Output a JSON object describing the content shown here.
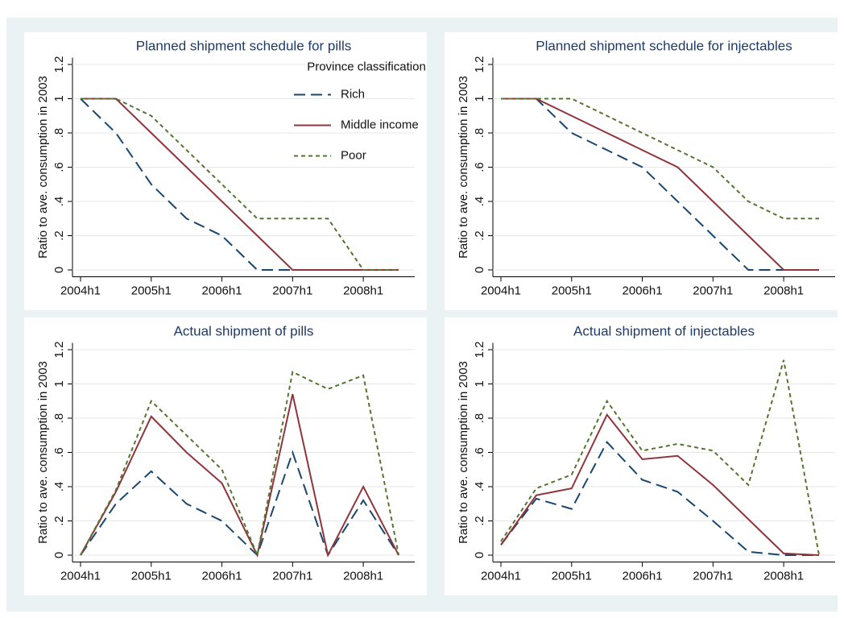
{
  "chart_data": [
    {
      "type": "line",
      "title": "Planned shipment schedule for pills",
      "y_label": "Ratio to ave. consumption in 2003",
      "categories": [
        "2004h1",
        null,
        "2005h1",
        null,
        "2006h1",
        null,
        "2007h1",
        null,
        "2008h1",
        null
      ],
      "ylim": [
        -0.04,
        1.24
      ],
      "yticks": [
        0,
        {
          "value": 0.2,
          "label": ".2"
        },
        {
          "value": 0.4,
          "label": ".4"
        },
        {
          "value": 0.6,
          "label": ".6"
        },
        {
          "value": 0.8,
          "label": ".8"
        },
        1,
        1.2
      ],
      "grid": true,
      "legend": "top right",
      "legend_title": "Province classification",
      "series": [
        {
          "name": "Rich",
          "color": "#1a476f",
          "dash": "long",
          "values": [
            1,
            0.8,
            0.5,
            0.3,
            0.2,
            0,
            0,
            0,
            0,
            0
          ]
        },
        {
          "name": "Middle income",
          "color": "#90353b",
          "dash": "solid",
          "values": [
            1,
            1,
            0.8,
            0.6,
            0.4,
            0.2,
            0,
            0,
            0,
            0
          ]
        },
        {
          "name": "Poor",
          "color": "#55752f",
          "dash": "short",
          "values": [
            1,
            1,
            0.9,
            0.7,
            0.5,
            0.3,
            0.3,
            0.3,
            0,
            0
          ]
        }
      ]
    },
    {
      "type": "line",
      "title": "Planned shipment schedule for injectables",
      "y_label": "Ratio to ave. consumption in 2003",
      "categories": [
        "2004h1",
        null,
        "2005h1",
        null,
        "2006h1",
        null,
        "2007h1",
        null,
        "2008h1",
        null
      ],
      "ylim": [
        -0.04,
        1.24
      ],
      "yticks": [
        0,
        {
          "value": 0.2,
          "label": ".2"
        },
        {
          "value": 0.4,
          "label": ".4"
        },
        {
          "value": 0.6,
          "label": ".6"
        },
        {
          "value": 0.8,
          "label": ".8"
        },
        1,
        1.2
      ],
      "grid": true,
      "series": [
        {
          "name": "Rich",
          "color": "#1a476f",
          "dash": "long",
          "values": [
            1,
            1,
            0.8,
            0.7,
            0.6,
            0.4,
            0.2,
            0,
            0,
            0
          ]
        },
        {
          "name": "Middle income",
          "color": "#90353b",
          "dash": "solid",
          "values": [
            1,
            1,
            0.9,
            0.8,
            0.7,
            0.6,
            0.4,
            0.2,
            0,
            0
          ]
        },
        {
          "name": "Poor",
          "color": "#55752f",
          "dash": "short",
          "values": [
            1,
            1,
            1,
            0.9,
            0.8,
            0.7,
            0.6,
            0.4,
            0.3,
            0.3
          ]
        }
      ]
    },
    {
      "type": "line",
      "title": "Actual shipment of pills",
      "y_label": "Ratio to ave. consumption in 2003",
      "categories": [
        "2004h1",
        null,
        "2005h1",
        null,
        "2006h1",
        null,
        "2007h1",
        null,
        "2008h1",
        null
      ],
      "ylim": [
        -0.04,
        1.24
      ],
      "yticks": [
        0,
        {
          "value": 0.2,
          "label": ".2"
        },
        {
          "value": 0.4,
          "label": ".4"
        },
        {
          "value": 0.6,
          "label": ".6"
        },
        {
          "value": 0.8,
          "label": ".8"
        },
        1,
        1.2
      ],
      "grid": true,
      "series": [
        {
          "name": "Rich",
          "color": "#1a476f",
          "dash": "long",
          "values": [
            0,
            0.3,
            0.49,
            0.3,
            0.2,
            0,
            0.6,
            0,
            0.32,
            0
          ]
        },
        {
          "name": "Middle income",
          "color": "#90353b",
          "dash": "solid",
          "values": [
            0,
            0.37,
            0.81,
            0.6,
            0.42,
            0,
            0.94,
            0,
            0.4,
            0
          ]
        },
        {
          "name": "Poor",
          "color": "#55752f",
          "dash": "short",
          "values": [
            0,
            0.38,
            0.9,
            0.7,
            0.5,
            0,
            1.07,
            0.97,
            1.05,
            0
          ]
        }
      ]
    },
    {
      "type": "line",
      "title": "Actual shipment of injectables",
      "y_label": "Ratio to ave. consumption in 2003",
      "categories": [
        "2004h1",
        null,
        "2005h1",
        null,
        "2006h1",
        null,
        "2007h1",
        null,
        "2008h1",
        null
      ],
      "ylim": [
        -0.04,
        1.24
      ],
      "yticks": [
        0,
        {
          "value": 0.2,
          "label": ".2"
        },
        {
          "value": 0.4,
          "label": ".4"
        },
        {
          "value": 0.6,
          "label": ".6"
        },
        {
          "value": 0.8,
          "label": ".8"
        },
        1,
        1.2
      ],
      "grid": true,
      "series": [
        {
          "name": "Rich",
          "color": "#1a476f",
          "dash": "long",
          "values": [
            0.06,
            0.33,
            0.27,
            0.66,
            0.44,
            0.37,
            0.2,
            0.02,
            0,
            0
          ]
        },
        {
          "name": "Middle income",
          "color": "#90353b",
          "dash": "solid",
          "values": [
            0.06,
            0.35,
            0.39,
            0.82,
            0.56,
            0.58,
            0.41,
            0.21,
            0.01,
            0
          ]
        },
        {
          "name": "Poor",
          "color": "#55752f",
          "dash": "short",
          "values": [
            0.08,
            0.39,
            0.47,
            0.9,
            0.61,
            0.65,
            0.61,
            0.41,
            1.14,
            0
          ]
        }
      ]
    }
  ]
}
